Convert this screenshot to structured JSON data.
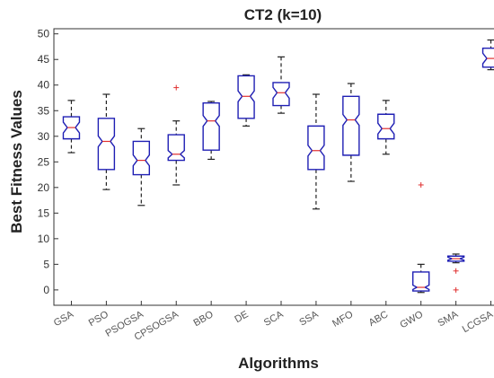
{
  "chart_data": {
    "type": "box",
    "title": "CT2  (k=10)",
    "xlabel": "Algorithms",
    "ylabel": "Best  Fitness  Values",
    "ylim": [
      -3,
      51
    ],
    "yticks": [
      0,
      5,
      10,
      15,
      20,
      25,
      30,
      35,
      40,
      45,
      50
    ],
    "grid": false,
    "notched": true,
    "colors": {
      "box": "#1f1fb4",
      "median": "#e03030",
      "whisker": "#222222",
      "outlier": "#e03030"
    },
    "categories": [
      "GSA",
      "PSO",
      "PSOGSA",
      "CPSOGSA",
      "BBO",
      "DE",
      "SCA",
      "SSA",
      "MFO",
      "ABC",
      "GWO",
      "SMA",
      "LCGSA"
    ],
    "boxes": [
      {
        "min": 26.8,
        "q1": 29.5,
        "median": 31.7,
        "q3": 33.8,
        "max": 37.0,
        "outliers": []
      },
      {
        "min": 19.6,
        "q1": 23.5,
        "median": 29.0,
        "q3": 33.5,
        "max": 38.2,
        "outliers": []
      },
      {
        "min": 16.5,
        "q1": 22.5,
        "median": 25.3,
        "q3": 29.0,
        "max": 31.5,
        "outliers": []
      },
      {
        "min": 20.5,
        "q1": 25.3,
        "median": 26.5,
        "q3": 30.3,
        "max": 33.0,
        "outliers": [
          39.5
        ]
      },
      {
        "min": 25.5,
        "q1": 27.3,
        "median": 33.0,
        "q3": 36.5,
        "max": 36.8,
        "outliers": []
      },
      {
        "min": 32.0,
        "q1": 33.5,
        "median": 37.8,
        "q3": 41.8,
        "max": 42.0,
        "outliers": []
      },
      {
        "min": 34.5,
        "q1": 36.0,
        "median": 38.5,
        "q3": 40.5,
        "max": 45.5,
        "outliers": []
      },
      {
        "min": 15.8,
        "q1": 23.5,
        "median": 27.2,
        "q3": 32.0,
        "max": 38.2,
        "outliers": []
      },
      {
        "min": 21.2,
        "q1": 26.3,
        "median": 33.2,
        "q3": 37.8,
        "max": 40.3,
        "outliers": []
      },
      {
        "min": 26.5,
        "q1": 29.5,
        "median": 31.5,
        "q3": 34.3,
        "max": 37.0,
        "outliers": []
      },
      {
        "min": -0.5,
        "q1": -0.2,
        "median": 0.5,
        "q3": 3.5,
        "max": 5.0,
        "outliers": [
          20.5
        ]
      },
      {
        "min": 5.3,
        "q1": 5.6,
        "median": 6.1,
        "q3": 6.6,
        "max": 7.0,
        "outliers": [
          3.7,
          0.0
        ]
      },
      {
        "min": 43.0,
        "q1": 43.5,
        "median": 45.2,
        "q3": 47.2,
        "max": 48.8,
        "outliers": []
      }
    ]
  }
}
